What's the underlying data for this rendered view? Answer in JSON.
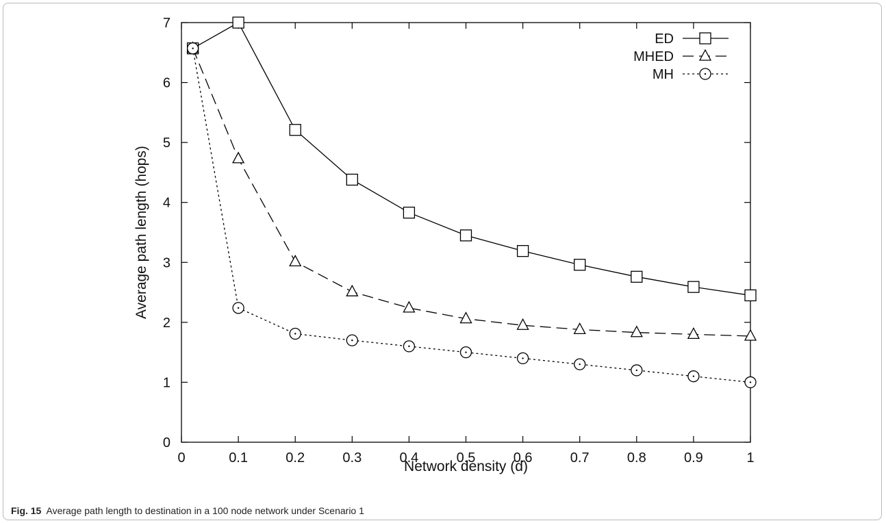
{
  "caption": {
    "label": "Fig. 15",
    "text": "Average path length to destination in a 100 node network under Scenario 1"
  },
  "chart_data": {
    "type": "line",
    "xlabel": "Network density (d)",
    "ylabel": "Average path length (hops)",
    "xlim": [
      0,
      1
    ],
    "ylim": [
      0,
      7
    ],
    "xticks": [
      0,
      0.1,
      0.2,
      0.3,
      0.4,
      0.5,
      0.6,
      0.7,
      0.8,
      0.9,
      1
    ],
    "xtick_labels": [
      "0",
      "0.1",
      "0.2",
      "0.3",
      "0.4",
      "0.5",
      "0.6",
      "0.7",
      "0.8",
      "0.9",
      "1"
    ],
    "yticks": [
      0,
      1,
      2,
      3,
      4,
      5,
      6,
      7
    ],
    "ytick_labels": [
      "0",
      "1",
      "2",
      "3",
      "4",
      "5",
      "6",
      "7"
    ],
    "grid": false,
    "legend_position": "top-right",
    "x": [
      0.02,
      0.1,
      0.2,
      0.3,
      0.4,
      0.5,
      0.6,
      0.7,
      0.8,
      0.9,
      1.0
    ],
    "series": [
      {
        "name": "ED",
        "marker": "square",
        "dash": "solid",
        "values": [
          6.57,
          7.0,
          5.21,
          4.38,
          3.83,
          3.45,
          3.19,
          2.96,
          2.76,
          2.59,
          2.45
        ]
      },
      {
        "name": "MHED",
        "marker": "triangle",
        "dash": "dashed",
        "values": [
          6.57,
          4.73,
          3.01,
          2.51,
          2.24,
          2.06,
          1.95,
          1.88,
          1.83,
          1.8,
          1.77
        ]
      },
      {
        "name": "MH",
        "marker": "circle",
        "dash": "dotted",
        "values": [
          6.57,
          2.24,
          1.81,
          1.7,
          1.6,
          1.5,
          1.4,
          1.3,
          1.2,
          1.1,
          1.0
        ]
      }
    ]
  }
}
